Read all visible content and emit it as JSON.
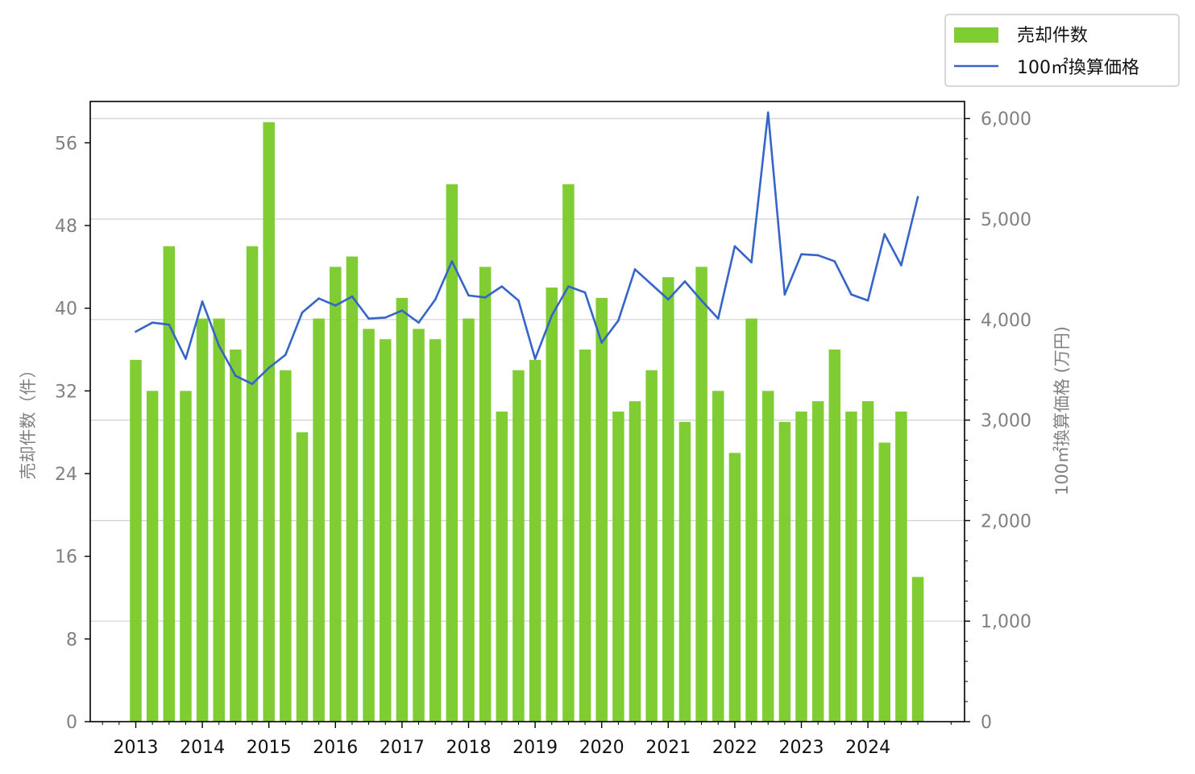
{
  "colors": {
    "bar": "#7fcc33",
    "line": "#3565c8",
    "grid": "#d0d0d0",
    "axis": "#000000",
    "tick_text": "#808080"
  },
  "chart_data": {
    "type": "bar",
    "legend": {
      "placement": "top-right",
      "entries": [
        "売却件数",
        "100㎡換算価格"
      ]
    },
    "grid": true,
    "x": {
      "ticks": [
        "2013",
        "2014",
        "2015",
        "2016",
        "2017",
        "2018",
        "2019",
        "2020",
        "2021",
        "2022",
        "2023",
        "2024"
      ],
      "quarters_per_year": 4,
      "start": "2013 Q1"
    },
    "y_left": {
      "label": "売却件数（件）",
      "range": [
        0,
        60
      ],
      "ticks": [
        0,
        8,
        16,
        24,
        32,
        40,
        48,
        56
      ],
      "tick_labels": [
        "0",
        "8",
        "16",
        "24",
        "32",
        "40",
        "48",
        "56"
      ]
    },
    "y_right": {
      "label": "100㎡換算価格 (万円)",
      "range": [
        0,
        6170
      ],
      "ticks": [
        0,
        1000,
        2000,
        3000,
        4000,
        5000,
        6000
      ],
      "tick_labels": [
        "0",
        "1,000",
        "2,000",
        "3,000",
        "4,000",
        "5,000",
        "6,000"
      ]
    },
    "series": [
      {
        "name": "売却件数",
        "type": "bar",
        "axis": "left",
        "values": [
          35,
          32,
          46,
          32,
          39,
          39,
          36,
          46,
          58,
          34,
          28,
          39,
          44,
          45,
          38,
          37,
          41,
          38,
          37,
          52,
          39,
          44,
          30,
          34,
          35,
          42,
          52,
          36,
          41,
          30,
          31,
          34,
          43,
          29,
          44,
          32,
          26,
          39,
          32,
          29,
          30,
          31,
          36,
          30,
          31,
          27,
          30,
          14
        ]
      },
      {
        "name": "100㎡換算価格",
        "type": "line",
        "axis": "right",
        "values": [
          3880,
          3970,
          3950,
          3610,
          4180,
          3740,
          3440,
          3360,
          3520,
          3650,
          4070,
          4210,
          4140,
          4230,
          4010,
          4020,
          4090,
          3970,
          4200,
          4580,
          4240,
          4220,
          4330,
          4190,
          3610,
          4040,
          4330,
          4270,
          3770,
          3990,
          4500,
          4350,
          4200,
          4380,
          4190,
          4010,
          4730,
          4570,
          6060,
          4250,
          4650,
          4640,
          4580,
          4250,
          4190,
          4850,
          4540,
          5220
        ]
      }
    ]
  }
}
